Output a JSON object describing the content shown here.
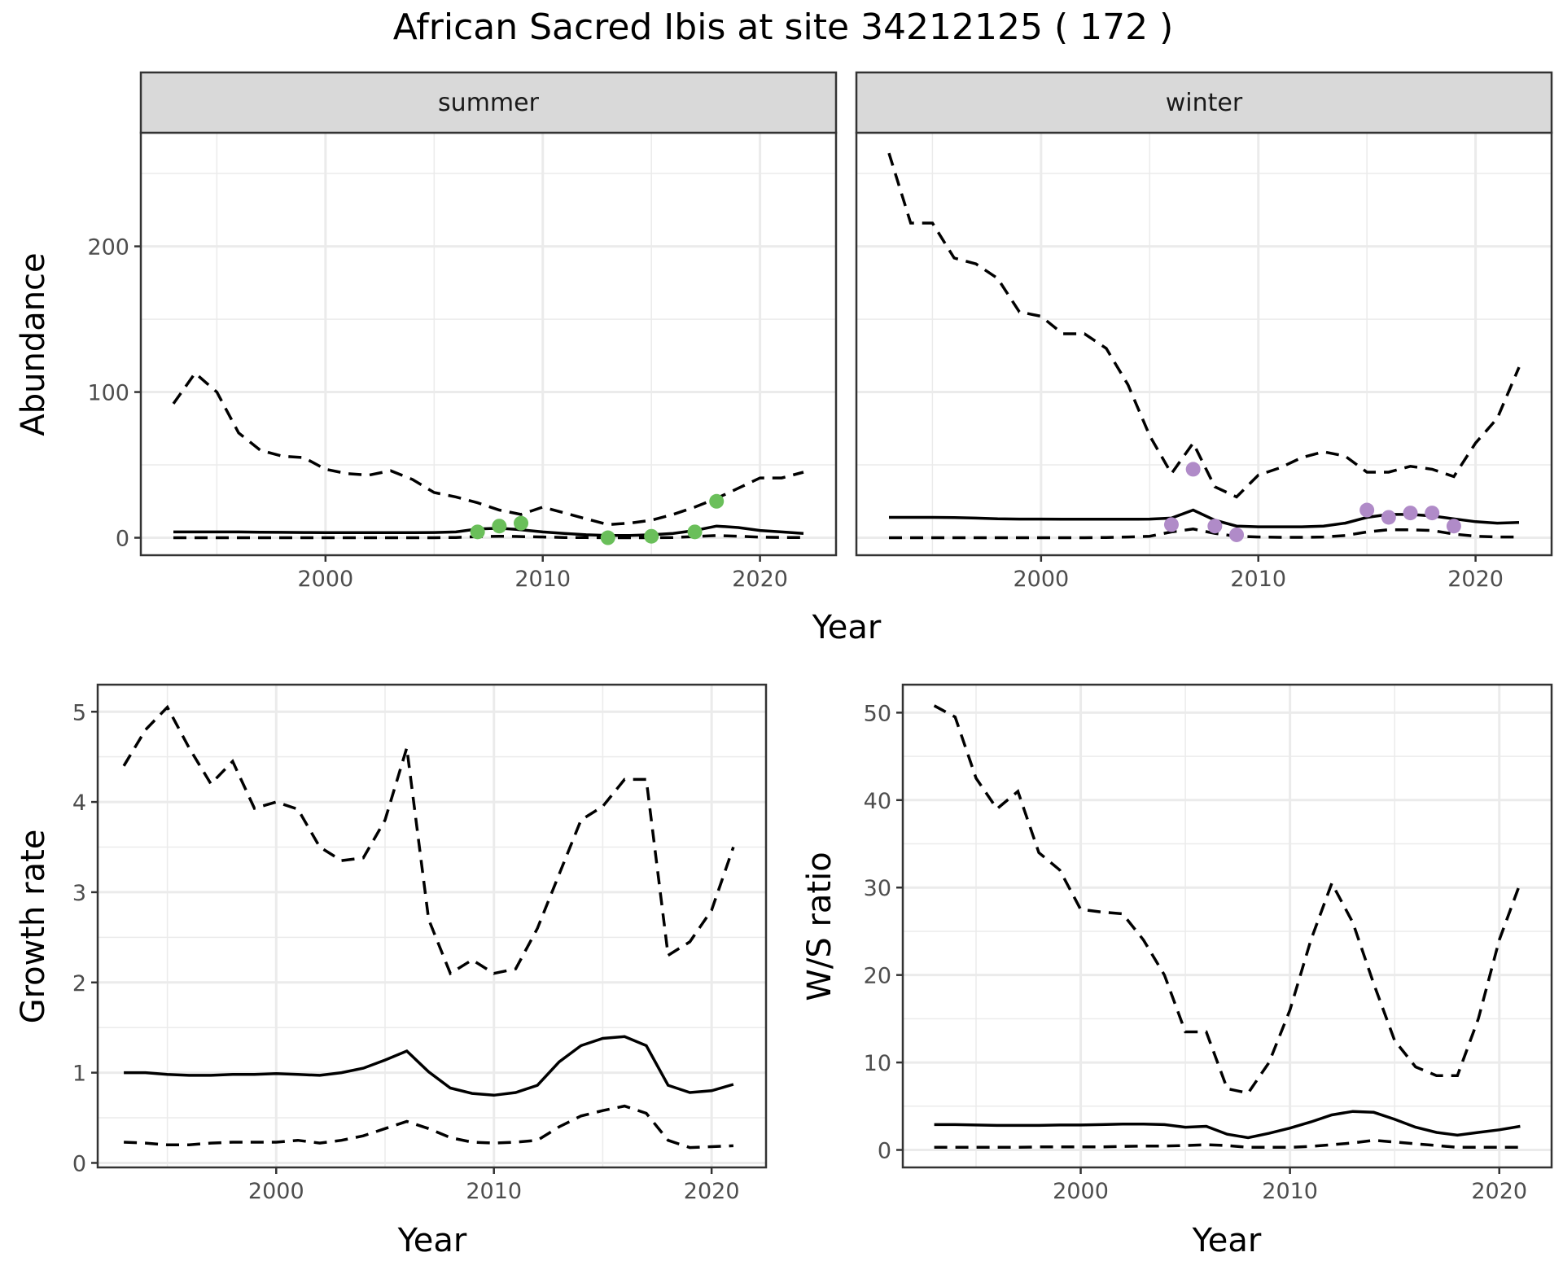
{
  "title": "African Sacred Ibis at site 34212125 ( 172 )",
  "colors": {
    "summer_points": "#6abf5a",
    "winter_points": "#b08bc8",
    "lines": "#000000"
  },
  "chart_data": [
    {
      "type": "line",
      "facet": "summer",
      "xlabel": "Year",
      "ylabel": "Abundance",
      "xlim": [
        1991.5,
        2023.5
      ],
      "ylim": [
        -12,
        278
      ],
      "x_ticks": [
        2000,
        2010,
        2020
      ],
      "y_ticks": [
        0,
        100,
        200
      ],
      "grid": true,
      "series": [
        {
          "style": "solid",
          "x": [
            1993,
            1994,
            1995,
            1996,
            1997,
            1998,
            1999,
            2000,
            2001,
            2002,
            2003,
            2004,
            2005,
            2006,
            2007,
            2008,
            2009,
            2010,
            2011,
            2012,
            2013,
            2014,
            2015,
            2016,
            2017,
            2018,
            2019,
            2020,
            2021,
            2022
          ],
          "y": [
            4,
            4,
            4,
            4,
            3.8,
            3.7,
            3.6,
            3.5,
            3.5,
            3.5,
            3.5,
            3.5,
            3.6,
            4,
            6,
            6.5,
            5.5,
            4,
            3,
            2,
            1.5,
            1.5,
            2,
            3,
            5,
            8,
            7,
            5,
            4,
            3
          ]
        },
        {
          "style": "dashed",
          "x": [
            1993,
            1994,
            1995,
            1996,
            1997,
            1998,
            1999,
            2000,
            2001,
            2002,
            2003,
            2004,
            2005,
            2006,
            2007,
            2008,
            2009,
            2010,
            2011,
            2012,
            2013,
            2014,
            2015,
            2016,
            2017,
            2018,
            2019,
            2020,
            2021,
            2022
          ],
          "y": [
            92,
            113,
            100,
            72,
            60,
            56,
            55,
            47,
            44,
            43,
            46,
            40,
            31,
            28,
            24,
            19,
            16,
            21,
            17,
            13,
            9,
            10,
            12,
            16,
            21,
            27,
            34,
            41,
            41,
            45
          ]
        },
        {
          "style": "dashed",
          "x": [
            1993,
            1994,
            1995,
            1996,
            1997,
            1998,
            1999,
            2000,
            2001,
            2002,
            2003,
            2004,
            2005,
            2006,
            2007,
            2008,
            2009,
            2010,
            2011,
            2012,
            2013,
            2014,
            2015,
            2016,
            2017,
            2018,
            2019,
            2020,
            2021,
            2022
          ],
          "y": [
            0,
            0,
            0,
            0,
            0,
            0,
            0,
            0,
            0,
            0,
            0,
            0,
            0,
            0.2,
            0.8,
            1,
            0.8,
            0.5,
            0.2,
            0.1,
            0,
            0,
            0,
            0.2,
            0.8,
            1.5,
            1,
            0.4,
            0.2,
            0.1
          ]
        }
      ],
      "points": {
        "x": [
          2007,
          2008,
          2009,
          2013,
          2015,
          2017,
          2018
        ],
        "y": [
          4,
          8,
          10,
          0,
          1,
          4,
          25
        ]
      }
    },
    {
      "type": "line",
      "facet": "winter",
      "xlabel": "Year",
      "ylabel": "Abundance",
      "xlim": [
        1991.5,
        2023.5
      ],
      "ylim": [
        -12,
        278
      ],
      "x_ticks": [
        2000,
        2010,
        2020
      ],
      "y_ticks": [
        0,
        100,
        200
      ],
      "grid": true,
      "series": [
        {
          "style": "solid",
          "x": [
            1993,
            1994,
            1995,
            1996,
            1997,
            1998,
            1999,
            2000,
            2001,
            2002,
            2003,
            2004,
            2005,
            2006,
            2007,
            2008,
            2009,
            2010,
            2011,
            2012,
            2013,
            2014,
            2015,
            2016,
            2017,
            2018,
            2019,
            2020,
            2021,
            2022
          ],
          "y": [
            14,
            14,
            14,
            13.8,
            13.5,
            13,
            12.8,
            12.8,
            12.7,
            12.7,
            12.7,
            12.7,
            12.8,
            13.5,
            19,
            12,
            8,
            7.5,
            7.5,
            7.5,
            8,
            10,
            14,
            16,
            16,
            15,
            13,
            11,
            10,
            10.5
          ]
        },
        {
          "style": "dashed",
          "x": [
            1993,
            1994,
            1995,
            1996,
            1997,
            1998,
            1999,
            2000,
            2001,
            2002,
            2003,
            2004,
            2005,
            2006,
            2007,
            2008,
            2009,
            2010,
            2011,
            2012,
            2013,
            2014,
            2015,
            2016,
            2017,
            2018,
            2019,
            2020,
            2021,
            2022
          ],
          "y": [
            264,
            216,
            216,
            192,
            188,
            178,
            155,
            152,
            140,
            140,
            130,
            105,
            70,
            44,
            65,
            35,
            28,
            43,
            48,
            55,
            59,
            56,
            45,
            45,
            49,
            47,
            42,
            65,
            82,
            117
          ]
        },
        {
          "style": "dashed",
          "x": [
            1993,
            1994,
            1995,
            1996,
            1997,
            1998,
            1999,
            2000,
            2001,
            2002,
            2003,
            2004,
            2005,
            2006,
            2007,
            2008,
            2009,
            2010,
            2011,
            2012,
            2013,
            2014,
            2015,
            2016,
            2017,
            2018,
            2019,
            2020,
            2021,
            2022
          ],
          "y": [
            0,
            0,
            0,
            0,
            0,
            0,
            0,
            0,
            0,
            0,
            0.2,
            0.5,
            1,
            4,
            6,
            3,
            1,
            0.5,
            0.3,
            0.3,
            0.5,
            1.5,
            4,
            5.5,
            5.5,
            5,
            2.5,
            1,
            0.5,
            0.5
          ]
        }
      ],
      "points": {
        "x": [
          2006,
          2007,
          2008,
          2009,
          2015,
          2016,
          2017,
          2018,
          2019
        ],
        "y": [
          9,
          47,
          8,
          2,
          19,
          14,
          17,
          17,
          8
        ]
      }
    },
    {
      "type": "line",
      "xlabel": "Year",
      "ylabel": "Growth rate",
      "xlim": [
        1991.8,
        2022.5
      ],
      "ylim": [
        -0.05,
        5.3
      ],
      "x_ticks": [
        2000,
        2010,
        2020
      ],
      "y_ticks": [
        0,
        1,
        2,
        3,
        4,
        5
      ],
      "grid": true,
      "series": [
        {
          "style": "solid",
          "x": [
            1993,
            1994,
            1995,
            1996,
            1997,
            1998,
            1999,
            2000,
            2001,
            2002,
            2003,
            2004,
            2005,
            2006,
            2007,
            2008,
            2009,
            2010,
            2011,
            2012,
            2013,
            2014,
            2015,
            2016,
            2017,
            2018,
            2019,
            2020,
            2021
          ],
          "y": [
            1,
            1,
            0.98,
            0.97,
            0.97,
            0.98,
            0.98,
            0.99,
            0.98,
            0.97,
            1,
            1.05,
            1.14,
            1.24,
            1.01,
            0.83,
            0.77,
            0.75,
            0.78,
            0.86,
            1.12,
            1.3,
            1.38,
            1.4,
            1.3,
            0.86,
            0.78,
            0.8,
            0.87
          ]
        },
        {
          "style": "dashed",
          "x": [
            1993,
            1994,
            1995,
            1996,
            1997,
            1998,
            1999,
            2000,
            2001,
            2002,
            2003,
            2004,
            2005,
            2006,
            2007,
            2008,
            2009,
            2010,
            2011,
            2012,
            2013,
            2014,
            2015,
            2016,
            2017,
            2018,
            2019,
            2020,
            2021
          ],
          "y": [
            4.4,
            4.8,
            5.05,
            4.6,
            4.2,
            4.45,
            3.93,
            4,
            3.92,
            3.5,
            3.35,
            3.38,
            3.8,
            4.6,
            2.7,
            2.1,
            2.25,
            2.1,
            2.15,
            2.6,
            3.2,
            3.8,
            3.95,
            4.25,
            4.25,
            2.3,
            2.45,
            2.8,
            3.5
          ]
        },
        {
          "style": "dashed",
          "x": [
            1993,
            1994,
            1995,
            1996,
            1997,
            1998,
            1999,
            2000,
            2001,
            2002,
            2003,
            2004,
            2005,
            2006,
            2007,
            2008,
            2009,
            2010,
            2011,
            2012,
            2013,
            2014,
            2015,
            2016,
            2017,
            2018,
            2019,
            2020,
            2021
          ],
          "y": [
            0.23,
            0.22,
            0.2,
            0.2,
            0.22,
            0.23,
            0.23,
            0.23,
            0.25,
            0.22,
            0.25,
            0.3,
            0.38,
            0.46,
            0.38,
            0.28,
            0.23,
            0.22,
            0.23,
            0.25,
            0.4,
            0.52,
            0.58,
            0.63,
            0.55,
            0.25,
            0.17,
            0.18,
            0.19
          ]
        }
      ]
    },
    {
      "type": "line",
      "xlabel": "Year",
      "ylabel": "W/S ratio",
      "xlim": [
        1991.5,
        2022.5
      ],
      "ylim": [
        -2,
        53.2
      ],
      "x_ticks": [
        2000,
        2010,
        2020
      ],
      "y_ticks": [
        0,
        10,
        20,
        30,
        40,
        50
      ],
      "grid": true,
      "series": [
        {
          "style": "solid",
          "x": [
            1993,
            1994,
            1995,
            1996,
            1997,
            1998,
            1999,
            2000,
            2001,
            2002,
            2003,
            2004,
            2005,
            2006,
            2007,
            2008,
            2009,
            2010,
            2011,
            2012,
            2013,
            2014,
            2015,
            2016,
            2017,
            2018,
            2019,
            2020,
            2021
          ],
          "y": [
            2.9,
            2.9,
            2.85,
            2.8,
            2.8,
            2.8,
            2.85,
            2.85,
            2.9,
            2.95,
            2.95,
            2.9,
            2.6,
            2.7,
            1.8,
            1.4,
            1.9,
            2.5,
            3.2,
            4,
            4.4,
            4.3,
            3.5,
            2.6,
            2,
            1.7,
            2,
            2.3,
            2.7
          ]
        },
        {
          "style": "dashed",
          "x": [
            1993,
            1994,
            1995,
            1996,
            1997,
            1998,
            1999,
            2000,
            2001,
            2002,
            2003,
            2004,
            2005,
            2006,
            2007,
            2008,
            2009,
            2010,
            2011,
            2012,
            2013,
            2014,
            2015,
            2016,
            2017,
            2018,
            2019,
            2020,
            2021
          ],
          "y": [
            50.8,
            49.5,
            42.5,
            39,
            41,
            34,
            32,
            27.5,
            27.2,
            27,
            24,
            20,
            13.5,
            13.5,
            7,
            6.5,
            10,
            16,
            24,
            30.5,
            26,
            19,
            12.5,
            9.5,
            8.5,
            8.5,
            15,
            24,
            30.5
          ]
        },
        {
          "style": "dashed",
          "x": [
            1993,
            1994,
            1995,
            1996,
            1997,
            1998,
            1999,
            2000,
            2001,
            2002,
            2003,
            2004,
            2005,
            2006,
            2007,
            2008,
            2009,
            2010,
            2011,
            2012,
            2013,
            2014,
            2015,
            2016,
            2017,
            2018,
            2019,
            2020,
            2021
          ],
          "y": [
            0.3,
            0.3,
            0.3,
            0.3,
            0.3,
            0.35,
            0.35,
            0.35,
            0.35,
            0.4,
            0.45,
            0.45,
            0.5,
            0.6,
            0.5,
            0.3,
            0.3,
            0.3,
            0.4,
            0.6,
            0.8,
            1.1,
            0.9,
            0.7,
            0.5,
            0.3,
            0.3,
            0.3,
            0.3
          ]
        }
      ]
    }
  ]
}
